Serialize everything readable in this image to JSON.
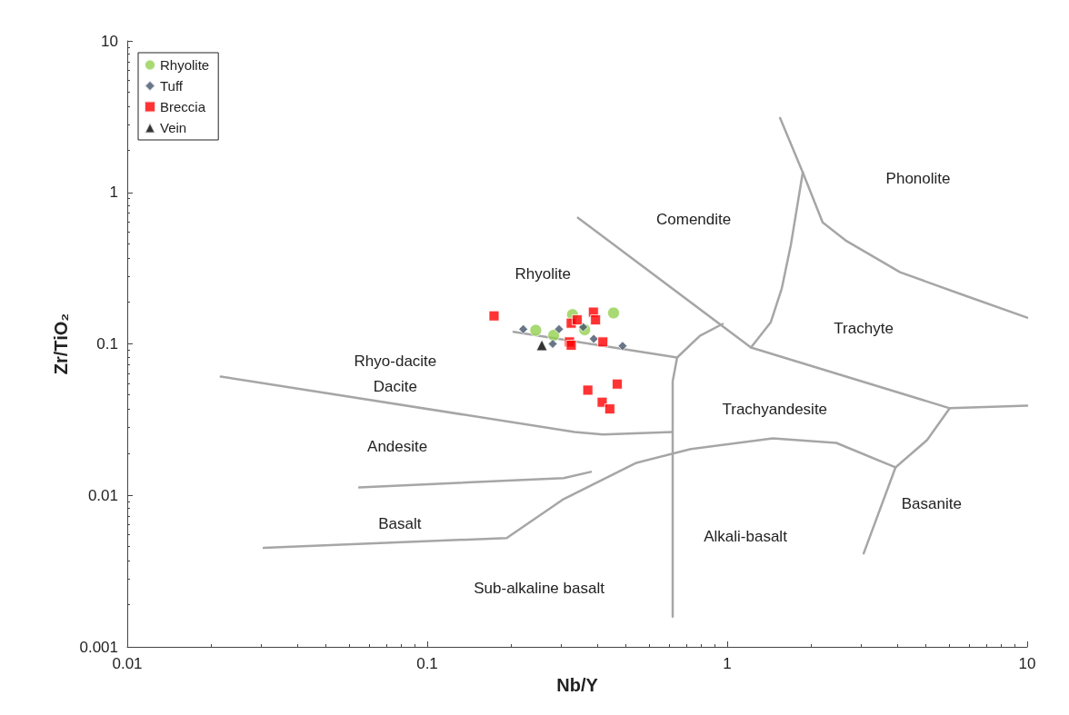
{
  "chart_data": {
    "type": "scatter",
    "xlabel": "Nb/Y",
    "ylabel": "Zr/TiO₂",
    "log": "xy",
    "xlim": [
      0.01,
      10
    ],
    "xticks": [
      0.01,
      0.1,
      1,
      10
    ],
    "ylim": [
      0.001,
      10
    ],
    "yticks": [
      0.001,
      0.01,
      0.1,
      1,
      10
    ],
    "grid": false,
    "legend": "top left",
    "series": [
      {
        "name": "Rhyolite",
        "color": "#92d050",
        "marker": "circle",
        "x": [
          0.418,
          0.23,
          0.264,
          0.305,
          0.335
        ],
        "values": [
          0.16,
          0.123,
          0.114,
          0.156,
          0.124
        ]
      },
      {
        "name": "Tuff",
        "color": "#44546a",
        "marker": "diamond",
        "x": [
          0.209,
          0.275,
          0.331,
          0.262,
          0.359,
          0.448
        ],
        "values": [
          0.125,
          0.125,
          0.129,
          0.1,
          0.108,
          0.097
        ]
      },
      {
        "name": "Breccia",
        "color": "#ff0000",
        "marker": "square",
        "x": [
          0.167,
          0.358,
          0.364,
          0.302,
          0.316,
          0.298,
          0.302,
          0.385,
          0.343,
          0.43,
          0.383,
          0.406
        ],
        "values": [
          0.153,
          0.162,
          0.144,
          0.137,
          0.144,
          0.103,
          0.098,
          0.103,
          0.0495,
          0.0543,
          0.0412,
          0.0372
        ]
      },
      {
        "name": "Vein",
        "color": "#000000",
        "marker": "triangle",
        "x": [
          0.241
        ],
        "values": [
          0.098
        ]
      },
      {
        "type": "line",
        "color": "#a6a6a6",
        "marker": "none",
        "x": [
          0.0205,
          0.31,
          0.385,
          0.658
        ],
        "values": [
          0.0608,
          0.0262,
          0.0252,
          0.0262
        ]
      },
      {
        "type": "line",
        "color": "#a6a6a6",
        "marker": "none",
        "x": [
          0.194,
          0.681,
          0.811,
          0.966
        ],
        "values": [
          0.12,
          0.0813,
          0.113,
          0.1355
        ]
      },
      {
        "type": "line",
        "color": "#a6a6a6",
        "marker": "none",
        "x": [
          0.318,
          1.2,
          5.52,
          10
        ],
        "values": [
          0.68,
          0.0946,
          0.0376,
          0.0391
        ]
      },
      {
        "type": "line",
        "color": "#a6a6a6",
        "marker": "none",
        "x": [
          1.2,
          1.397,
          1.52,
          1.63,
          1.786
        ],
        "values": [
          0.0946,
          0.139,
          0.232,
          0.45,
          1.355
        ]
      },
      {
        "type": "line",
        "color": "#a6a6a6",
        "marker": "none",
        "x": [
          1.5,
          1.786,
          2.08,
          2.48,
          3.77,
          6.13,
          10
        ],
        "values": [
          3.1,
          1.355,
          0.634,
          0.482,
          0.297,
          0.21,
          0.149
        ]
      },
      {
        "type": "line",
        "color": "#a6a6a6",
        "marker": "none",
        "x": [
          0.681,
          0.658,
          0.658
        ],
        "values": [
          0.0813,
          0.0568,
          0.00158
        ]
      },
      {
        "type": "line",
        "color": "#a6a6a6",
        "marker": "none",
        "x": [
          0.0285,
          0.184,
          0.285,
          0.498,
          0.756,
          1.42,
          2.31,
          3.64,
          4.64,
          5.52
        ],
        "values": [
          0.0045,
          0.00523,
          0.00946,
          0.0164,
          0.0202,
          0.0238,
          0.0222,
          0.0153,
          0.0232,
          0.0376
        ]
      },
      {
        "type": "line",
        "color": "#a6a6a6",
        "marker": "none",
        "x": [
          0.0593,
          0.285,
          0.351
        ],
        "values": [
          0.0113,
          0.013,
          0.0143
        ]
      },
      {
        "type": "line",
        "color": "#a6a6a6",
        "marker": "none",
        "x": [
          3.64,
          2.85
        ],
        "values": [
          0.0153,
          0.00414
        ]
      }
    ],
    "annotations": [
      "Phonolite",
      "Comendite",
      "Rhyolite",
      "Trachyte",
      "Rhyo-dacite",
      "Dacite",
      "Trachyandesite",
      "Andesite",
      "Basalt",
      "Basanite",
      "Alkali-basalt",
      "Sub-alkaline basalt"
    ]
  }
}
